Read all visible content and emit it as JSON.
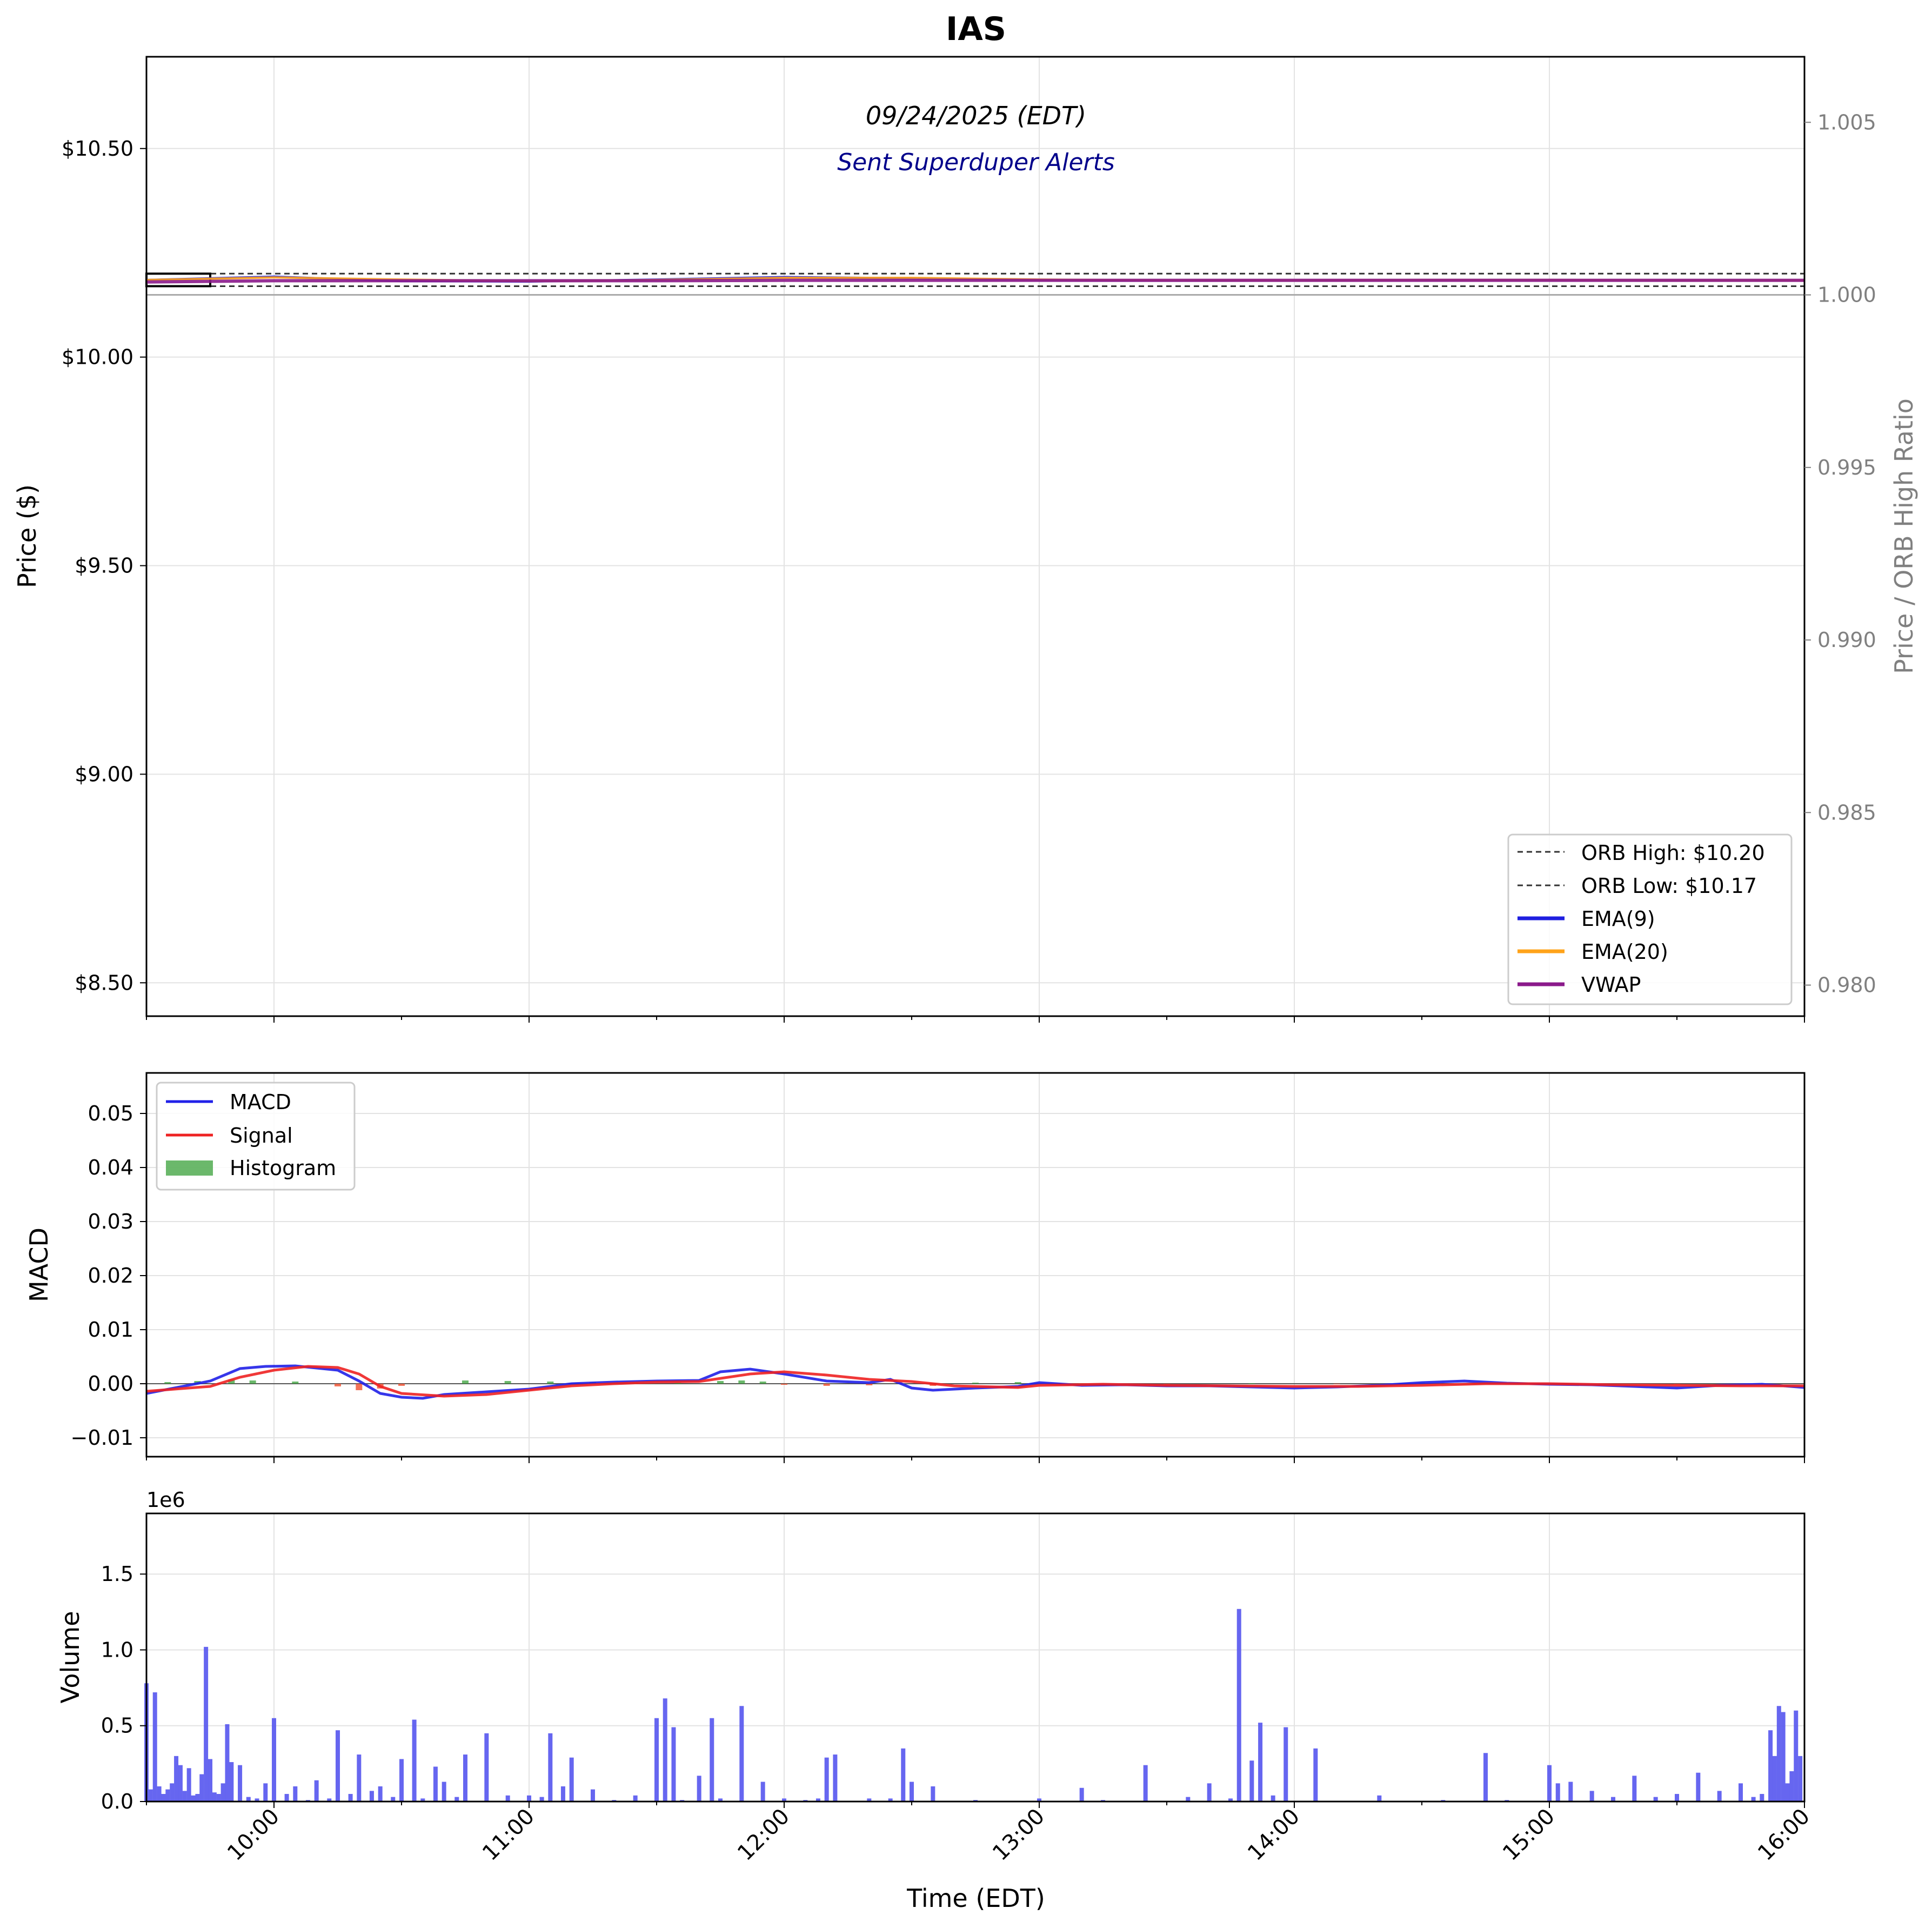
{
  "title": "IAS",
  "annotations": {
    "date": "09/24/2025 (EDT)",
    "subtitle": "Sent Superduper Alerts"
  },
  "colors": {
    "orb": "#333333",
    "ema9": "#1f1fe0",
    "ema20": "#ffa31a",
    "vwap": "#8b1a8b",
    "macd": "#2020e8",
    "signal": "#ee2222",
    "hist_pos": "#3aa03a",
    "hist_neg": "#ee4422",
    "volume": "#5555ee",
    "grid": "#e3e3e3",
    "ratio_axis": "#808080"
  },
  "chart_data": [
    {
      "type": "line",
      "name": "price",
      "ylabel": "Price ($)",
      "y2label": "Price / ORB High Ratio",
      "ylim": [
        8.42,
        10.72
      ],
      "y2lim": [
        0.9791,
        1.0069
      ],
      "yticks": [
        "$8.50",
        "$9.00",
        "$9.50",
        "$10.00",
        "$10.50"
      ],
      "ytick_values": [
        8.5,
        9.0,
        9.5,
        10.0,
        10.5
      ],
      "y2ticks": [
        "0.980",
        "0.985",
        "0.990",
        "0.995",
        "1.000",
        "1.005"
      ],
      "y2tick_values": [
        0.98,
        0.985,
        0.99,
        0.995,
        1.0,
        1.005
      ],
      "grid": true,
      "legend": {
        "position": "lower-right",
        "entries": [
          "ORB High: $10.20",
          "ORB Low: $10.17",
          "EMA(9)",
          "EMA(20)",
          "VWAP"
        ]
      },
      "orb_high": 10.2,
      "orb_low": 10.17,
      "ratio_reference": 1.0,
      "series": [
        {
          "name": "EMA(9)",
          "x": [
            "09:30",
            "10:00",
            "10:30",
            "11:00",
            "11:30",
            "12:00",
            "12:30",
            "13:00",
            "13:30",
            "14:00",
            "14:30",
            "15:00",
            "15:30",
            "16:00"
          ],
          "values": [
            10.185,
            10.193,
            10.182,
            10.181,
            10.186,
            10.192,
            10.189,
            10.185,
            10.183,
            10.184,
            10.185,
            10.185,
            10.184,
            10.184
          ]
        },
        {
          "name": "EMA(20)",
          "x": [
            "09:30",
            "10:00",
            "10:30",
            "11:00",
            "11:30",
            "12:00",
            "12:30",
            "13:00",
            "13:30",
            "14:00",
            "14:30",
            "15:00",
            "15:30",
            "16:00"
          ],
          "values": [
            10.185,
            10.191,
            10.186,
            10.182,
            10.185,
            10.19,
            10.19,
            10.186,
            10.184,
            10.184,
            10.185,
            10.185,
            10.184,
            10.184
          ]
        },
        {
          "name": "VWAP",
          "x": [
            "09:30",
            "10:00",
            "10:30",
            "11:00",
            "11:30",
            "12:00",
            "12:30",
            "13:00",
            "13:30",
            "14:00",
            "14:30",
            "15:00",
            "15:30",
            "16:00"
          ],
          "values": [
            10.18,
            10.183,
            10.183,
            10.183,
            10.183,
            10.184,
            10.184,
            10.184,
            10.184,
            10.184,
            10.184,
            10.184,
            10.184,
            10.184
          ]
        }
      ]
    },
    {
      "type": "line",
      "name": "macd",
      "ylabel": "MACD",
      "ylim": [
        -0.0135,
        0.0575
      ],
      "yticks": [
        "−0.01",
        "0.00",
        "0.01",
        "0.02",
        "0.03",
        "0.04",
        "0.05"
      ],
      "ytick_values": [
        -0.01,
        0.0,
        0.01,
        0.02,
        0.03,
        0.04,
        0.05
      ],
      "grid": true,
      "legend": {
        "position": "upper-left",
        "entries": [
          "MACD",
          "Signal",
          "Histogram"
        ]
      },
      "series": [
        {
          "name": "MACD",
          "x": [
            "09:30",
            "09:45",
            "09:52",
            "09:58",
            "10:05",
            "10:15",
            "10:20",
            "10:25",
            "10:30",
            "10:35",
            "10:40",
            "10:50",
            "11:00",
            "11:10",
            "11:20",
            "11:30",
            "11:40",
            "11:45",
            "11:52",
            "12:00",
            "12:10",
            "12:20",
            "12:25",
            "12:30",
            "12:35",
            "12:45",
            "12:55",
            "13:00",
            "13:10",
            "13:20",
            "13:30",
            "13:40",
            "13:50",
            "14:00",
            "14:10",
            "14:20",
            "14:30",
            "14:40",
            "14:50",
            "15:00",
            "15:10",
            "15:20",
            "15:30",
            "15:40",
            "15:50",
            "16:00"
          ],
          "values": [
            -0.0018,
            0.0005,
            0.0028,
            0.0032,
            0.0033,
            0.0025,
            0.0005,
            -0.0018,
            -0.0025,
            -0.0027,
            -0.002,
            -0.0015,
            -0.001,
            0.0,
            0.0003,
            0.0005,
            0.0006,
            0.0022,
            0.0027,
            0.0018,
            0.0005,
            0.0002,
            0.0008,
            -0.0008,
            -0.0012,
            -0.0008,
            -0.0005,
            0.0002,
            -0.0003,
            -0.0002,
            -0.0004,
            -0.0004,
            -0.0006,
            -0.0008,
            -0.0006,
            -0.0003,
            0.0002,
            0.0005,
            0.0001,
            -0.0001,
            -0.0002,
            -0.0005,
            -0.0008,
            -0.0003,
            -0.0001,
            -0.0007
          ]
        },
        {
          "name": "Signal",
          "x": [
            "09:30",
            "09:45",
            "09:52",
            "10:00",
            "10:08",
            "10:15",
            "10:20",
            "10:25",
            "10:30",
            "10:40",
            "10:50",
            "11:00",
            "11:10",
            "11:20",
            "11:30",
            "11:40",
            "11:52",
            "12:00",
            "12:10",
            "12:20",
            "12:30",
            "12:40",
            "12:55",
            "13:00",
            "13:15",
            "13:30",
            "13:45",
            "14:00",
            "14:15",
            "14:30",
            "14:45",
            "15:00",
            "15:15",
            "15:30",
            "15:45",
            "16:00"
          ],
          "values": [
            -0.0014,
            -0.0005,
            0.0012,
            0.0025,
            0.0032,
            0.003,
            0.0018,
            -0.0005,
            -0.0018,
            -0.0023,
            -0.002,
            -0.0012,
            -0.0004,
            0.0,
            0.0003,
            0.0004,
            0.0018,
            0.0022,
            0.0016,
            0.0008,
            0.0004,
            -0.0004,
            -0.0007,
            -0.0003,
            -0.0001,
            -0.0003,
            -0.0004,
            -0.0005,
            -0.0005,
            -0.0003,
            0.0,
            0.0,
            -0.0002,
            -0.0003,
            -0.0004,
            -0.0004
          ]
        },
        {
          "name": "Histogram",
          "x": [
            "09:35",
            "09:42",
            "09:50",
            "09:55",
            "10:05",
            "10:15",
            "10:20",
            "10:25",
            "10:30",
            "10:45",
            "10:55",
            "11:05",
            "11:15",
            "11:25",
            "11:35",
            "11:45",
            "11:50",
            "11:55",
            "12:00",
            "12:10",
            "12:20",
            "12:35",
            "12:45",
            "12:55",
            "13:10",
            "13:30",
            "13:50",
            "14:10",
            "14:30",
            "14:50",
            "15:10",
            "15:30",
            "15:50"
          ],
          "values": [
            0.0003,
            0.0005,
            0.0008,
            0.0006,
            0.0004,
            -0.0005,
            -0.0012,
            -0.0009,
            -0.0004,
            0.0006,
            0.0005,
            0.0004,
            0.0003,
            0.0002,
            0.0002,
            0.0005,
            0.0006,
            0.0004,
            -0.0002,
            -0.0004,
            -0.0003,
            -0.0004,
            0.0002,
            0.0003,
            0.0001,
            -0.0001,
            0.0001,
            -0.0001,
            0.0002,
            0.0001,
            0.0001,
            -0.0001,
            0.0001
          ]
        }
      ]
    },
    {
      "type": "bar",
      "name": "volume",
      "ylabel": "Volume",
      "multiplier_label": "1e6",
      "xlabel": "Time (EDT)",
      "ylim": [
        0,
        1.9
      ],
      "yticks": [
        "0.0",
        "0.5",
        "1.0",
        "1.5"
      ],
      "ytick_values": [
        0.0,
        0.5,
        1.0,
        1.5
      ],
      "xticks": [
        "10:00",
        "11:00",
        "12:00",
        "13:00",
        "14:00",
        "15:00",
        "16:00"
      ],
      "xtick_values": [
        "10:00",
        "11:00",
        "12:00",
        "13:00",
        "14:00",
        "15:00",
        "16:00"
      ],
      "xlim": [
        "09:30",
        "16:00"
      ],
      "grid": true,
      "series": [
        {
          "name": "Volume",
          "x": [
            "09:30",
            "09:31",
            "09:32",
            "09:33",
            "09:34",
            "09:35",
            "09:36",
            "09:37",
            "09:38",
            "09:39",
            "09:40",
            "09:41",
            "09:42",
            "09:43",
            "09:44",
            "09:45",
            "09:46",
            "09:47",
            "09:48",
            "09:49",
            "09:50",
            "09:52",
            "09:54",
            "09:56",
            "09:58",
            "10:00",
            "10:03",
            "10:05",
            "10:08",
            "10:10",
            "10:13",
            "10:15",
            "10:18",
            "10:20",
            "10:23",
            "10:25",
            "10:28",
            "10:30",
            "10:33",
            "10:35",
            "10:38",
            "10:40",
            "10:43",
            "10:45",
            "10:50",
            "10:55",
            "11:00",
            "11:03",
            "11:05",
            "11:08",
            "11:10",
            "11:15",
            "11:20",
            "11:25",
            "11:30",
            "11:32",
            "11:34",
            "11:36",
            "11:40",
            "11:43",
            "11:45",
            "11:50",
            "11:55",
            "12:00",
            "12:05",
            "12:08",
            "12:10",
            "12:12",
            "12:20",
            "12:25",
            "12:28",
            "12:30",
            "12:35",
            "12:45",
            "13:00",
            "13:10",
            "13:15",
            "13:25",
            "13:35",
            "13:40",
            "13:45",
            "13:47",
            "13:50",
            "13:52",
            "13:55",
            "13:58",
            "14:05",
            "14:20",
            "14:35",
            "14:45",
            "14:50",
            "15:00",
            "15:02",
            "15:05",
            "15:10",
            "15:15",
            "15:20",
            "15:25",
            "15:30",
            "15:35",
            "15:40",
            "15:45",
            "15:48",
            "15:50",
            "15:52",
            "15:53",
            "15:54",
            "15:55",
            "15:56",
            "15:57",
            "15:58",
            "15:59"
          ],
          "values": [
            0.78,
            0.08,
            0.72,
            0.1,
            0.05,
            0.08,
            0.12,
            0.3,
            0.24,
            0.07,
            0.22,
            0.04,
            0.05,
            0.18,
            1.02,
            0.28,
            0.06,
            0.05,
            0.12,
            0.51,
            0.26,
            0.24,
            0.03,
            0.02,
            0.12,
            0.55,
            0.05,
            0.1,
            0.01,
            0.14,
            0.02,
            0.47,
            0.05,
            0.31,
            0.07,
            0.1,
            0.03,
            0.28,
            0.54,
            0.02,
            0.23,
            0.13,
            0.03,
            0.31,
            0.45,
            0.04,
            0.04,
            0.03,
            0.45,
            0.1,
            0.29,
            0.08,
            0.01,
            0.04,
            0.55,
            0.68,
            0.49,
            0.01,
            0.17,
            0.55,
            0.02,
            0.63,
            0.13,
            0.02,
            0.01,
            0.02,
            0.29,
            0.31,
            0.02,
            0.02,
            0.35,
            0.13,
            0.1,
            0.01,
            0.02,
            0.09,
            0.01,
            0.24,
            0.03,
            0.12,
            0.02,
            1.27,
            0.27,
            0.52,
            0.04,
            0.49,
            0.35,
            0.04,
            0.01,
            0.32,
            0.01,
            0.24,
            0.12,
            0.13,
            0.07,
            0.03,
            0.17,
            0.03,
            0.05,
            0.19,
            0.07,
            0.12,
            0.03,
            0.05,
            0.47,
            0.3,
            0.63,
            0.59,
            0.12,
            0.2,
            0.6,
            0.3
          ]
        }
      ]
    }
  ]
}
